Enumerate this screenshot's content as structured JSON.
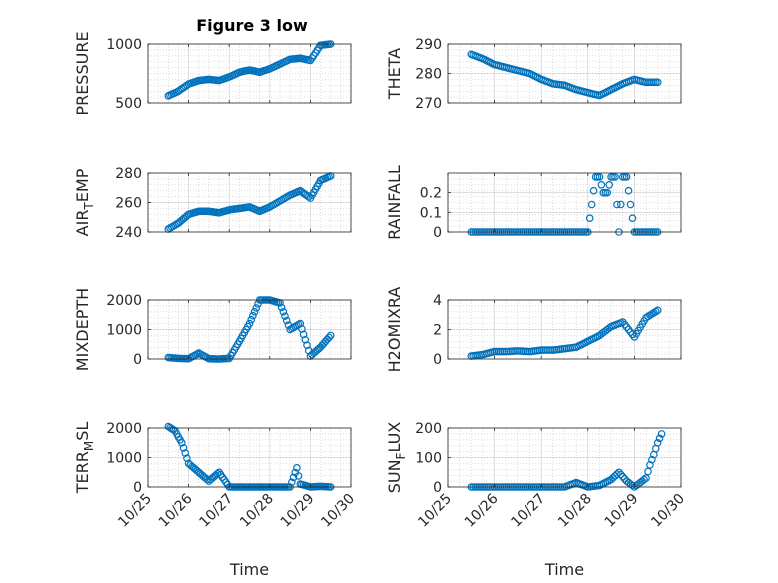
{
  "figure": {
    "title": "Figure 3 low"
  },
  "colors": {
    "marker": "#0072BD",
    "axis": "#262626",
    "grid": "#a0a0a0",
    "background": "#ffffff"
  },
  "chart_data": [
    {
      "type": "scatter",
      "ylabel": "PRESSURE",
      "xlabel": "",
      "title": "Figure 3 low",
      "xlim": [
        "10/25",
        "10/30"
      ],
      "ylim": [
        500,
        1000
      ],
      "yticks": [
        "500",
        "1000"
      ],
      "grid": true,
      "marker": "open-circle",
      "x": [
        "2014-10-25 12:00",
        "2014-10-25 18:00",
        "2014-10-26 00:00",
        "2014-10-26 06:00",
        "2014-10-26 12:00",
        "2014-10-26 18:00",
        "2014-10-27 00:00",
        "2014-10-27 06:00",
        "2014-10-27 12:00",
        "2014-10-27 18:00",
        "2014-10-28 00:00",
        "2014-10-28 06:00",
        "2014-10-28 12:00",
        "2014-10-28 18:00",
        "2014-10-29 00:00",
        "2014-10-29 06:00",
        "2014-10-29 12:00"
      ],
      "y": [
        560,
        600,
        660,
        690,
        700,
        690,
        720,
        760,
        780,
        760,
        790,
        830,
        870,
        880,
        860,
        990,
        1000
      ]
    },
    {
      "type": "scatter",
      "ylabel": "THETA",
      "xlabel": "",
      "xlim": [
        "10/25",
        "10/30"
      ],
      "ylim": [
        270,
        290
      ],
      "yticks": [
        "270",
        "280",
        "290"
      ],
      "grid": true,
      "marker": "open-circle",
      "x": [
        "2014-10-25 12:00",
        "2014-10-25 18:00",
        "2014-10-26 00:00",
        "2014-10-26 06:00",
        "2014-10-26 12:00",
        "2014-10-26 18:00",
        "2014-10-27 00:00",
        "2014-10-27 06:00",
        "2014-10-27 12:00",
        "2014-10-27 18:00",
        "2014-10-28 00:00",
        "2014-10-28 06:00",
        "2014-10-28 12:00",
        "2014-10-28 18:00",
        "2014-10-29 00:00",
        "2014-10-29 06:00",
        "2014-10-29 12:00"
      ],
      "y": [
        286.5,
        285,
        283,
        282,
        281,
        280,
        278,
        276.5,
        276,
        274.5,
        273.5,
        272.5,
        274.5,
        276.5,
        278,
        277,
        277
      ]
    },
    {
      "type": "scatter",
      "ylabel": "AIR_TEMP",
      "ylabel_main": "AIR",
      "ylabel_sub": "T",
      "ylabel_rest": "EMP",
      "xlabel": "",
      "xlim": [
        "10/25",
        "10/30"
      ],
      "ylim": [
        240,
        280
      ],
      "yticks": [
        "240",
        "260",
        "280"
      ],
      "grid": true,
      "marker": "open-circle",
      "x": [
        "2014-10-25 12:00",
        "2014-10-25 18:00",
        "2014-10-26 00:00",
        "2014-10-26 06:00",
        "2014-10-26 12:00",
        "2014-10-26 18:00",
        "2014-10-27 00:00",
        "2014-10-27 06:00",
        "2014-10-27 12:00",
        "2014-10-27 18:00",
        "2014-10-28 00:00",
        "2014-10-28 06:00",
        "2014-10-28 12:00",
        "2014-10-28 18:00",
        "2014-10-29 00:00",
        "2014-10-29 06:00",
        "2014-10-29 12:00"
      ],
      "y": [
        242,
        246,
        252,
        254,
        254,
        253,
        255,
        256,
        257,
        254,
        257,
        261,
        265,
        268,
        263,
        275,
        278
      ]
    },
    {
      "type": "scatter",
      "ylabel": "RAINFALL",
      "xlabel": "",
      "xlim": [
        "10/25",
        "10/30"
      ],
      "ylim": [
        0,
        0.3
      ],
      "yticks": [
        "0",
        "0.1",
        "0.2"
      ],
      "grid": true,
      "marker": "open-circle",
      "x": [
        "2014-10-25 12:00",
        "2014-10-26 00:00",
        "2014-10-26 12:00",
        "2014-10-27 00:00",
        "2014-10-27 12:00",
        "2014-10-28 00:00",
        "2014-10-28 04:00",
        "2014-10-28 06:00",
        "2014-10-28 08:00",
        "2014-10-28 10:00",
        "2014-10-28 12:00",
        "2014-10-28 14:00",
        "2014-10-28 16:00",
        "2014-10-28 18:00",
        "2014-10-28 20:00",
        "2014-10-29 00:00",
        "2014-10-29 06:00",
        "2014-10-29 12:00"
      ],
      "y": [
        0,
        0,
        0,
        0,
        0,
        0,
        0.28,
        0.28,
        0.2,
        0.2,
        0.28,
        0.28,
        0,
        0.28,
        0.28,
        0,
        0,
        0
      ]
    },
    {
      "type": "scatter",
      "ylabel": "MIXDEPTH",
      "xlabel": "",
      "xlim": [
        "10/25",
        "10/30"
      ],
      "ylim": [
        0,
        2000
      ],
      "yticks": [
        "0",
        "1000",
        "2000"
      ],
      "grid": true,
      "marker": "open-circle",
      "x": [
        "2014-10-25 12:00",
        "2014-10-25 18:00",
        "2014-10-26 00:00",
        "2014-10-26 06:00",
        "2014-10-26 12:00",
        "2014-10-26 18:00",
        "2014-10-27 00:00",
        "2014-10-27 06:00",
        "2014-10-27 12:00",
        "2014-10-27 18:00",
        "2014-10-28 00:00",
        "2014-10-28 06:00",
        "2014-10-28 12:00",
        "2014-10-28 18:00",
        "2014-10-29 00:00",
        "2014-10-29 06:00",
        "2014-10-29 12:00"
      ],
      "y": [
        50,
        20,
        10,
        200,
        10,
        0,
        20,
        600,
        1200,
        2000,
        2000,
        1900,
        1000,
        1200,
        100,
        400,
        800
      ]
    },
    {
      "type": "scatter",
      "ylabel": "H2OMIXRA",
      "xlabel": "",
      "xlim": [
        "10/25",
        "10/30"
      ],
      "ylim": [
        0,
        4
      ],
      "yticks": [
        "0",
        "2",
        "4"
      ],
      "grid": true,
      "marker": "open-circle",
      "x": [
        "2014-10-25 12:00",
        "2014-10-25 18:00",
        "2014-10-26 00:00",
        "2014-10-26 06:00",
        "2014-10-26 12:00",
        "2014-10-26 18:00",
        "2014-10-27 00:00",
        "2014-10-27 06:00",
        "2014-10-27 12:00",
        "2014-10-27 18:00",
        "2014-10-28 00:00",
        "2014-10-28 06:00",
        "2014-10-28 12:00",
        "2014-10-28 18:00",
        "2014-10-29 00:00",
        "2014-10-29 06:00",
        "2014-10-29 12:00"
      ],
      "y": [
        0.2,
        0.3,
        0.5,
        0.5,
        0.55,
        0.5,
        0.6,
        0.6,
        0.7,
        0.8,
        1.2,
        1.6,
        2.2,
        2.5,
        1.5,
        2.8,
        3.3
      ]
    },
    {
      "type": "scatter",
      "ylabel": "TERR_MSL",
      "ylabel_main": "TERR",
      "ylabel_sub": "M",
      "ylabel_rest": "SL",
      "xlabel": "Time",
      "xlim": [
        "10/25",
        "10/30"
      ],
      "ylim": [
        0,
        2000
      ],
      "yticks": [
        "0",
        "1000",
        "2000"
      ],
      "xticks": [
        "10/25",
        "10/26",
        "10/27",
        "10/28",
        "10/29",
        "10/30"
      ],
      "grid": true,
      "marker": "open-circle",
      "x": [
        "2014-10-25 12:00",
        "2014-10-25 16:00",
        "2014-10-25 20:00",
        "2014-10-26 00:00",
        "2014-10-26 04:00",
        "2014-10-26 08:00",
        "2014-10-26 12:00",
        "2014-10-26 18:00",
        "2014-10-27 00:00",
        "2014-10-27 06:00",
        "2014-10-27 12:00",
        "2014-10-27 18:00",
        "2014-10-28 00:00",
        "2014-10-28 06:00",
        "2014-10-28 12:00",
        "2014-10-28 16:00",
        "2014-10-28 18:00",
        "2014-10-29 00:00",
        "2014-10-29 06:00",
        "2014-10-29 12:00"
      ],
      "y": [
        2050,
        1900,
        1500,
        800,
        600,
        400,
        200,
        500,
        0,
        0,
        0,
        0,
        0,
        0,
        0,
        650,
        100,
        0,
        20,
        0
      ]
    },
    {
      "type": "scatter",
      "ylabel": "SUN_FLUX",
      "ylabel_main": "SUN",
      "ylabel_sub": "F",
      "ylabel_rest": "LUX",
      "xlabel": "Time",
      "xlim": [
        "10/25",
        "10/30"
      ],
      "ylim": [
        0,
        200
      ],
      "yticks": [
        "0",
        "100",
        "200"
      ],
      "xticks": [
        "10/25",
        "10/26",
        "10/27",
        "10/28",
        "10/29",
        "10/30"
      ],
      "grid": true,
      "marker": "open-circle",
      "x": [
        "2014-10-25 12:00",
        "2014-10-26 00:00",
        "2014-10-26 12:00",
        "2014-10-27 00:00",
        "2014-10-27 12:00",
        "2014-10-27 18:00",
        "2014-10-28 00:00",
        "2014-10-28 06:00",
        "2014-10-28 12:00",
        "2014-10-28 16:00",
        "2014-10-28 20:00",
        "2014-10-29 00:00",
        "2014-10-29 06:00",
        "2014-10-29 08:00",
        "2014-10-29 10:00",
        "2014-10-29 12:00",
        "2014-10-29 14:00"
      ],
      "y": [
        0,
        0,
        0,
        0,
        0,
        15,
        0,
        5,
        25,
        50,
        20,
        0,
        30,
        75,
        110,
        150,
        180
      ]
    }
  ]
}
